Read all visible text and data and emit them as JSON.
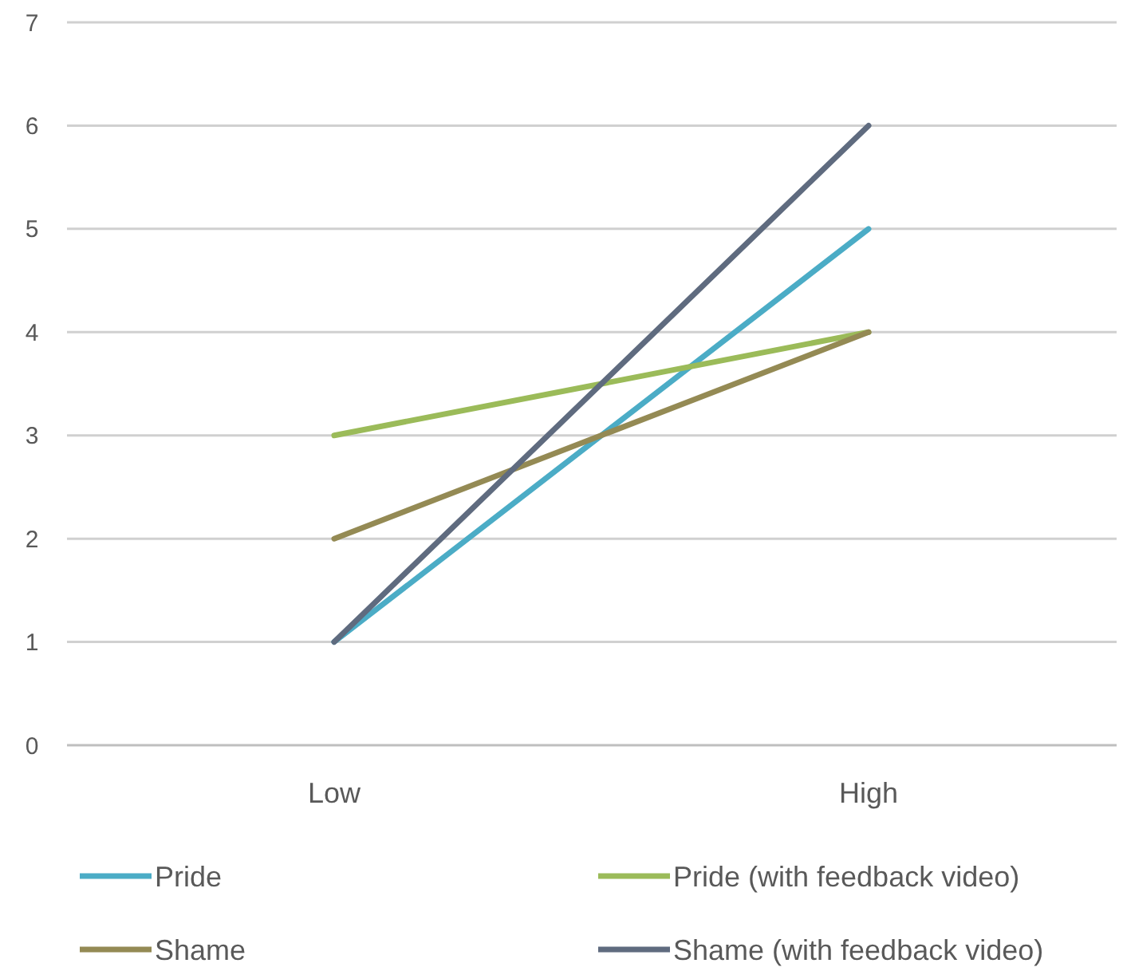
{
  "chart_data": {
    "type": "line",
    "categories": [
      "Low",
      "High"
    ],
    "series": [
      {
        "name": "Pride",
        "color": "#4bacc6",
        "values": [
          1,
          5
        ]
      },
      {
        "name": "Pride (with feedback video)",
        "color": "#9bbb59",
        "values": [
          3,
          4
        ]
      },
      {
        "name": "Shame",
        "color": "#948a54",
        "values": [
          2,
          4
        ]
      },
      {
        "name": "Shame (with feedback video)",
        "color": "#5f6b7f",
        "values": [
          1,
          6
        ]
      }
    ],
    "ylim": [
      0,
      7
    ],
    "yticks": [
      0,
      1,
      2,
      3,
      4,
      5,
      6,
      7
    ],
    "grid": "y",
    "legend": "bottom",
    "marker": "none",
    "line_style": "solid"
  }
}
